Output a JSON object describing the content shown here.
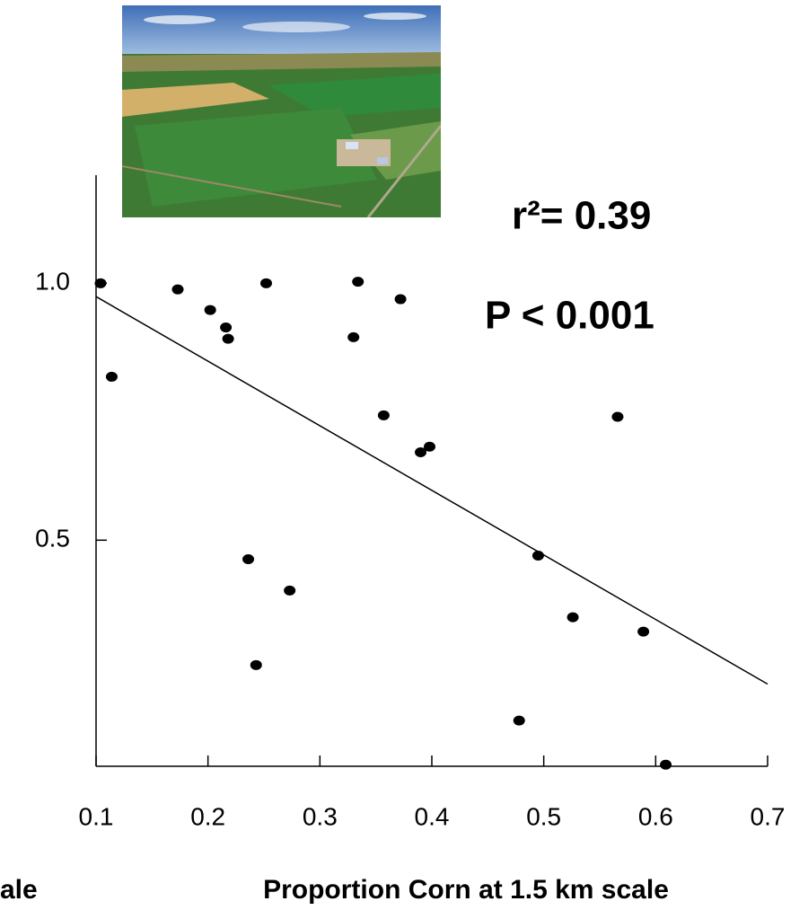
{
  "chart_data": {
    "type": "scatter",
    "x": [
      0.104,
      0.114,
      0.173,
      0.202,
      0.216,
      0.218,
      0.252,
      0.334,
      0.372,
      0.33,
      0.357,
      0.39,
      0.398,
      0.566,
      0.495,
      0.526,
      0.589,
      0.236,
      0.273,
      0.243,
      0.478,
      0.609
    ],
    "values": [
      1.0,
      0.818,
      0.988,
      0.948,
      0.914,
      0.892,
      1.0,
      1.003,
      0.969,
      0.895,
      0.743,
      0.671,
      0.682,
      0.74,
      0.47,
      0.35,
      0.322,
      0.463,
      0.402,
      0.257,
      0.149,
      0.063
    ],
    "color": "#000000",
    "trendline": {
      "x": [
        0.1,
        0.7
      ],
      "y": [
        0.974,
        0.22
      ]
    },
    "xlim": [
      0.1,
      0.7
    ],
    "xticks": [
      0.1,
      0.2,
      0.3,
      0.4,
      0.5,
      0.6,
      0.7
    ],
    "ylim": [
      0.06,
      1.215
    ],
    "yticks": [
      {
        "value": 0.5,
        "label": "0.5"
      },
      {
        "value": 1,
        "label": "1.0"
      }
    ],
    "x_label": "Proportion Corn at 1.5 km scale",
    "partial_label": "ale",
    "annotations": [
      "r²= 0.39",
      "P < 0.001"
    ]
  }
}
